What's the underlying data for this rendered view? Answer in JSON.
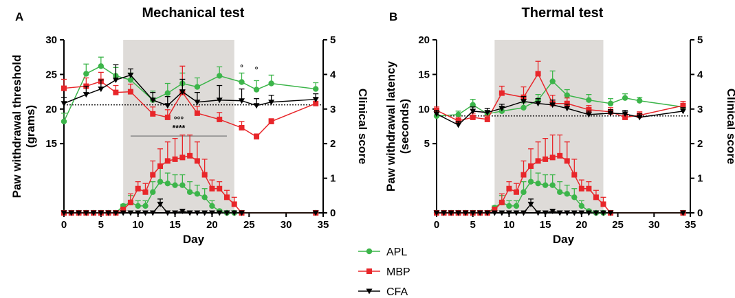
{
  "colors": {
    "APL": "#3cb54a",
    "MBP": "#e8262a",
    "CFA": "#000000",
    "shade": "#dedbd8"
  },
  "legend": [
    {
      "key": "APL",
      "label": "APL",
      "marker": "circle"
    },
    {
      "key": "MBP",
      "label": "MBP",
      "marker": "square"
    },
    {
      "key": "CFA",
      "label": "CFA",
      "marker": "triangle-down"
    }
  ],
  "chart_data": [
    {
      "type": "line",
      "panel": "A",
      "title": "Mechanical test",
      "xlabel": "Day",
      "ylabel_left": [
        "Paw withdrawal threshold",
        "(grams)"
      ],
      "ylabel_right": "Clinical score",
      "xlim": [
        0,
        35
      ],
      "xticks": [
        0,
        5,
        10,
        15,
        20,
        25,
        30,
        35
      ],
      "ylim_left": [
        15,
        30
      ],
      "yticks_left": [
        15,
        20,
        25,
        30
      ],
      "ylim_right": [
        0,
        5
      ],
      "yticks_right": [
        0,
        1,
        2,
        3,
        4,
        5
      ],
      "shaded_x": [
        8,
        23
      ],
      "baseline_left": 20.6,
      "annotations": [
        {
          "text": "°",
          "x": 24,
          "y": 25.6
        },
        {
          "text": "°",
          "x": 26,
          "y": 25.3
        },
        {
          "text": "°°°",
          "x": 15.5,
          "score": 2.62
        },
        {
          "text": "****",
          "x": 15.5,
          "score": 2.37
        }
      ],
      "significance_bar": {
        "x": [
          9,
          22
        ],
        "score": 2.22
      },
      "threshold_series": [
        {
          "key": "APL",
          "x": [
            0,
            3,
            5,
            7,
            9,
            12,
            14,
            16,
            18,
            21,
            24,
            26,
            28,
            34
          ],
          "y": [
            18.2,
            25.1,
            26.2,
            24.8,
            24.2,
            21.3,
            22.3,
            23.7,
            23.2,
            24.8,
            23.9,
            22.8,
            23.7,
            22.9
          ],
          "err": [
            1.2,
            1.4,
            1.3,
            1.2,
            1.0,
            1.3,
            1.4,
            1.5,
            1.3,
            1.3,
            1.3,
            1.3,
            1.2,
            0.9
          ]
        },
        {
          "key": "MBP",
          "x": [
            0,
            3,
            5,
            7,
            9,
            12,
            14,
            16,
            18,
            21,
            24,
            26,
            28,
            34
          ],
          "y": [
            23.0,
            23.3,
            24.0,
            22.4,
            22.5,
            19.3,
            18.8,
            22.4,
            19.4,
            18.5,
            17.3,
            16.0,
            18.2,
            20.8
          ],
          "err": [
            1.3,
            1.2,
            1.3,
            1.0,
            1.1,
            1.0,
            1.1,
            3.8,
            1.0,
            1.0,
            0.9,
            0.4,
            0.4,
            0.8
          ]
        },
        {
          "key": "CFA",
          "x": [
            0,
            3,
            5,
            7,
            9,
            12,
            14,
            16,
            18,
            21,
            24,
            26,
            28,
            34
          ],
          "y": [
            20.8,
            22.1,
            22.9,
            24.2,
            24.9,
            21.3,
            20.5,
            22.5,
            21.0,
            21.3,
            21.2,
            20.5,
            21.0,
            21.4
          ],
          "err": [
            0.9,
            1.2,
            1.3,
            2.2,
            0.9,
            1.1,
            1.3,
            1.8,
            1.4,
            2.1,
            1.7,
            1.0,
            1.0,
            0.8
          ]
        }
      ],
      "score_series": [
        {
          "key": "APL",
          "x": [
            0,
            1,
            2,
            3,
            4,
            5,
            6,
            7,
            8,
            9,
            10,
            11,
            12,
            13,
            14,
            15,
            16,
            17,
            18,
            19,
            20,
            21,
            22,
            23,
            24,
            34
          ],
          "y": [
            0,
            0,
            0,
            0,
            0,
            0,
            0,
            0,
            0.2,
            0.3,
            0.2,
            0.2,
            0.6,
            0.9,
            0.85,
            0.8,
            0.8,
            0.6,
            0.55,
            0.45,
            0.2,
            0.05,
            0,
            0,
            0,
            0
          ],
          "err": [
            0,
            0,
            0,
            0,
            0,
            0,
            0,
            0,
            0.05,
            0.2,
            0.15,
            0.15,
            0.3,
            0.4,
            0.3,
            0.3,
            0.3,
            0.3,
            0.25,
            0.25,
            0.15,
            0.05,
            0,
            0,
            0,
            0
          ]
        },
        {
          "key": "MBP",
          "x": [
            0,
            1,
            2,
            3,
            4,
            5,
            6,
            7,
            8,
            9,
            10,
            11,
            12,
            13,
            14,
            15,
            16,
            17,
            18,
            19,
            20,
            21,
            22,
            23,
            24,
            34
          ],
          "y": [
            0,
            0,
            0,
            0,
            0,
            0,
            0,
            0,
            0.1,
            0.3,
            0.7,
            0.6,
            1.1,
            1.35,
            1.5,
            1.55,
            1.6,
            1.65,
            1.5,
            1.1,
            0.7,
            0.7,
            0.45,
            0.25,
            0,
            0
          ],
          "err": [
            0,
            0,
            0,
            0,
            0,
            0,
            0,
            0,
            0.05,
            0.25,
            0.2,
            0.25,
            0.4,
            0.5,
            0.55,
            0.6,
            0.65,
            0.6,
            0.55,
            0.45,
            0.25,
            0.2,
            0.2,
            0.2,
            0,
            0
          ]
        },
        {
          "key": "CFA",
          "x": [
            0,
            1,
            2,
            3,
            4,
            5,
            6,
            7,
            8,
            9,
            10,
            11,
            12,
            13,
            14,
            15,
            16,
            17,
            18,
            19,
            20,
            21,
            22,
            23,
            24,
            34
          ],
          "y": [
            0,
            0,
            0,
            0,
            0,
            0,
            0,
            0,
            0,
            0,
            0,
            0,
            0,
            0.25,
            0,
            0,
            0.05,
            0,
            0,
            0,
            0,
            0,
            0,
            0,
            0,
            0
          ],
          "err": [
            0,
            0,
            0,
            0,
            0,
            0,
            0,
            0,
            0,
            0,
            0,
            0,
            0,
            0.15,
            0,
            0,
            0,
            0,
            0,
            0,
            0,
            0,
            0,
            0,
            0,
            0
          ]
        }
      ]
    },
    {
      "type": "line",
      "panel": "B",
      "title": "Thermal test",
      "xlabel": "Day",
      "ylabel_left": [
        "Paw withdrawal latency",
        "(seconds)"
      ],
      "ylabel_right": "Clinical score",
      "xlim": [
        0,
        35
      ],
      "xticks": [
        0,
        5,
        10,
        15,
        20,
        25,
        30,
        35
      ],
      "ylim_left": [
        5,
        20
      ],
      "yticks_left": [
        5,
        10,
        15,
        20
      ],
      "ylim_right": [
        0,
        5
      ],
      "yticks_right": [
        0,
        1,
        2,
        3,
        4,
        5
      ],
      "shaded_x": [
        8,
        23
      ],
      "baseline_left": 9.0,
      "annotations": [],
      "threshold_series": [
        {
          "key": "APL",
          "x": [
            0,
            3,
            5,
            7,
            9,
            12,
            14,
            16,
            18,
            21,
            24,
            26,
            28,
            34
          ],
          "y": [
            9.0,
            9.2,
            10.6,
            9.3,
            9.7,
            10.2,
            11.3,
            14.0,
            12.0,
            11.3,
            10.8,
            11.6,
            11.2,
            10.3
          ],
          "err": [
            0.5,
            0.5,
            0.8,
            0.5,
            0.6,
            0.7,
            0.8,
            1.5,
            0.8,
            0.8,
            0.7,
            0.6,
            0.5,
            0.4
          ]
        },
        {
          "key": "MBP",
          "x": [
            0,
            3,
            5,
            7,
            9,
            12,
            14,
            16,
            18,
            21,
            24,
            26,
            28,
            34
          ],
          "y": [
            9.8,
            8.3,
            8.8,
            8.5,
            12.3,
            11.7,
            15.1,
            10.8,
            10.8,
            9.9,
            9.6,
            8.8,
            9.1,
            10.5
          ],
          "err": [
            0.5,
            0.5,
            0.6,
            0.5,
            1.0,
            1.5,
            1.8,
            1.2,
            0.8,
            0.6,
            0.6,
            0.5,
            0.5,
            0.6
          ]
        },
        {
          "key": "CFA",
          "x": [
            0,
            3,
            5,
            7,
            9,
            12,
            14,
            16,
            18,
            21,
            24,
            26,
            28,
            34
          ],
          "y": [
            9.3,
            7.7,
            9.7,
            9.5,
            10.1,
            11.1,
            10.8,
            10.6,
            10.1,
            9.2,
            9.4,
            9.3,
            8.8,
            9.7
          ],
          "err": [
            0.5,
            0.5,
            0.6,
            0.6,
            0.6,
            0.7,
            0.7,
            0.7,
            0.6,
            0.5,
            0.5,
            0.5,
            0.5,
            0.5
          ]
        }
      ],
      "score_series": [
        {
          "key": "APL",
          "x": [
            0,
            1,
            2,
            3,
            4,
            5,
            6,
            7,
            8,
            9,
            10,
            11,
            12,
            13,
            14,
            15,
            16,
            17,
            18,
            19,
            20,
            21,
            22,
            23,
            24,
            34
          ],
          "y": [
            0,
            0,
            0,
            0,
            0,
            0,
            0,
            0,
            0.15,
            0.3,
            0.2,
            0.2,
            0.6,
            0.9,
            0.85,
            0.8,
            0.8,
            0.6,
            0.55,
            0.45,
            0.2,
            0.05,
            0,
            0,
            0,
            0
          ],
          "err": [
            0,
            0,
            0,
            0,
            0,
            0,
            0,
            0,
            0.05,
            0.2,
            0.15,
            0.15,
            0.3,
            0.4,
            0.3,
            0.3,
            0.3,
            0.3,
            0.25,
            0.25,
            0.15,
            0.05,
            0,
            0,
            0,
            0
          ]
        },
        {
          "key": "MBP",
          "x": [
            0,
            1,
            2,
            3,
            4,
            5,
            6,
            7,
            8,
            9,
            10,
            11,
            12,
            13,
            14,
            15,
            16,
            17,
            18,
            19,
            20,
            21,
            22,
            23,
            24,
            34
          ],
          "y": [
            0,
            0,
            0,
            0,
            0,
            0,
            0,
            0,
            0.1,
            0.3,
            0.7,
            0.6,
            1.1,
            1.35,
            1.5,
            1.55,
            1.6,
            1.65,
            1.5,
            1.1,
            0.7,
            0.7,
            0.45,
            0.25,
            0,
            0
          ],
          "err": [
            0,
            0,
            0,
            0,
            0,
            0,
            0,
            0,
            0.05,
            0.25,
            0.2,
            0.25,
            0.4,
            0.5,
            0.55,
            0.6,
            0.65,
            0.6,
            0.55,
            0.45,
            0.25,
            0.2,
            0.2,
            0.2,
            0,
            0
          ]
        },
        {
          "key": "CFA",
          "x": [
            0,
            1,
            2,
            3,
            4,
            5,
            6,
            7,
            8,
            9,
            10,
            11,
            12,
            13,
            14,
            15,
            16,
            17,
            18,
            19,
            20,
            21,
            22,
            23,
            24,
            34
          ],
          "y": [
            0,
            0,
            0,
            0,
            0,
            0,
            0,
            0,
            0,
            0,
            0,
            0,
            0,
            0.25,
            0,
            0,
            0.05,
            0,
            0,
            0,
            0,
            0,
            0,
            0,
            0,
            0
          ],
          "err": [
            0,
            0,
            0,
            0,
            0,
            0,
            0,
            0,
            0,
            0,
            0,
            0,
            0,
            0.15,
            0,
            0,
            0,
            0,
            0,
            0,
            0,
            0,
            0,
            0,
            0,
            0
          ]
        }
      ]
    }
  ]
}
